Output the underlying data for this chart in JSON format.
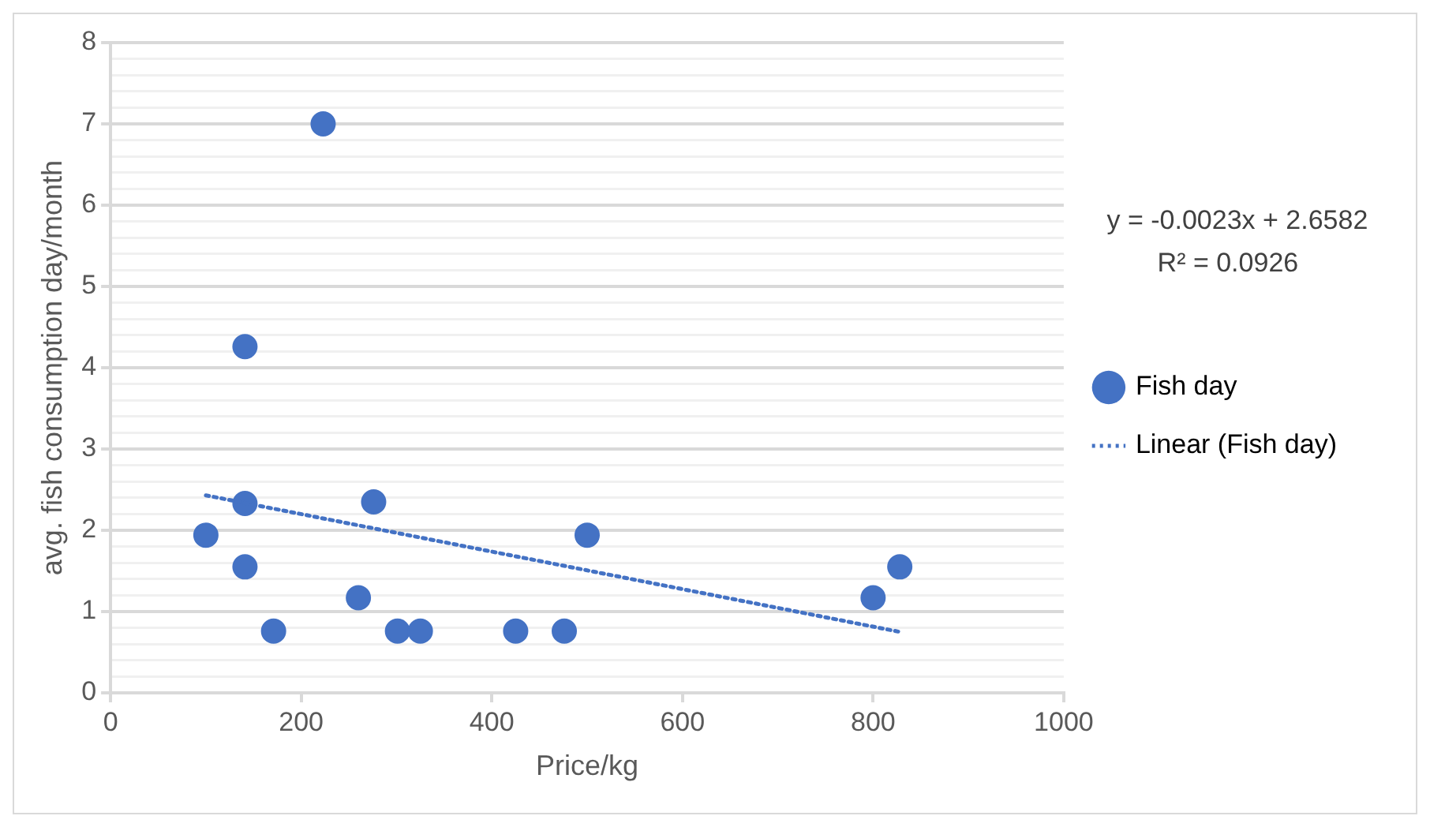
{
  "chart_data": {
    "type": "scatter",
    "xlabel": "Price/kg",
    "ylabel": "avg. fish consumption day/month",
    "annotations": [
      "y = -0.0023x + 2.6582",
      "R² = 0.0926"
    ],
    "series": [
      {
        "name": "Fish day",
        "type": "scatter",
        "color": "#4472c4",
        "marker": "circle",
        "x": [
          100,
          141,
          141,
          141,
          171,
          223,
          260,
          276,
          301,
          325,
          425,
          476,
          500,
          800,
          828
        ],
        "values": [
          1.94,
          4.26,
          2.33,
          1.55,
          0.76,
          7.0,
          1.17,
          2.35,
          0.76,
          0.76,
          0.76,
          0.76,
          1.94,
          1.17,
          1.55
        ]
      },
      {
        "name": "Linear (Fish day)",
        "type": "line",
        "color": "#4472c4",
        "marker": "none",
        "line_style": "dotted",
        "x": [
          100,
          828
        ],
        "values": [
          2.43,
          0.75
        ]
      }
    ],
    "xlim": [
      0,
      1000
    ],
    "xticks": [
      0,
      200,
      400,
      600,
      800,
      1000
    ],
    "ylim": [
      0,
      8
    ],
    "yticks": [
      0,
      {
        "value": 0.2,
        "label": null
      },
      {
        "value": 0.4,
        "label": null
      },
      {
        "value": 0.6,
        "label": null
      },
      {
        "value": 0.8,
        "label": null
      },
      1,
      {
        "value": 1.2,
        "label": null
      },
      {
        "value": 1.4,
        "label": null
      },
      {
        "value": 1.6,
        "label": null
      },
      {
        "value": 1.8,
        "label": null
      },
      2,
      {
        "value": 2.2,
        "label": null
      },
      {
        "value": 2.4,
        "label": null
      },
      {
        "value": 2.6,
        "label": null
      },
      {
        "value": 2.8,
        "label": null
      },
      3,
      {
        "value": 3.2,
        "label": null
      },
      {
        "value": 3.4,
        "label": null
      },
      {
        "value": 3.6,
        "label": null
      },
      {
        "value": 3.8,
        "label": null
      },
      4,
      {
        "value": 4.2,
        "label": null
      },
      {
        "value": 4.4,
        "label": null
      },
      {
        "value": 4.6,
        "label": null
      },
      {
        "value": 4.8,
        "label": null
      },
      5,
      {
        "value": 5.2,
        "label": null
      },
      {
        "value": 5.4,
        "label": null
      },
      {
        "value": 5.6,
        "label": null
      },
      {
        "value": 5.8,
        "label": null
      },
      6,
      {
        "value": 6.2,
        "label": null
      },
      {
        "value": 6.4,
        "label": null
      },
      {
        "value": 6.6,
        "label": null
      },
      {
        "value": 6.8,
        "label": null
      },
      7,
      {
        "value": 7.2,
        "label": null
      },
      {
        "value": 7.4,
        "label": null
      },
      {
        "value": 7.6,
        "label": null
      },
      {
        "value": 7.8,
        "label": null
      },
      8
    ],
    "grid": "y",
    "legend": "right"
  }
}
